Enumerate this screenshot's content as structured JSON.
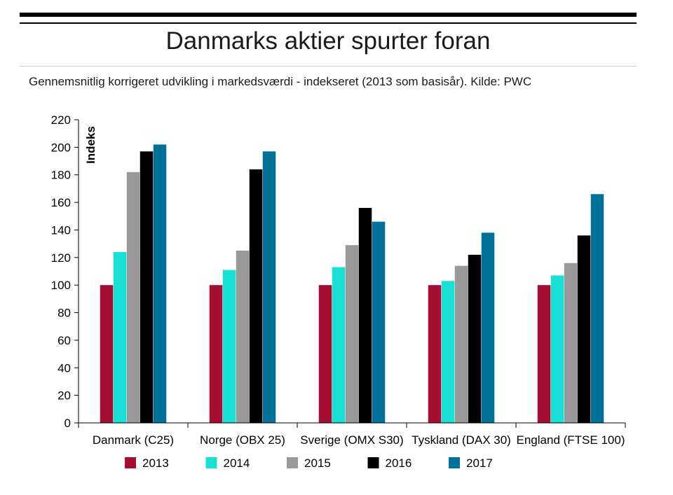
{
  "header": {
    "title": "Danmarks aktier spurter foran",
    "subtitle": "Gennemsnitlig korrigeret udvikling i markedsværdi - indekseret (2013 som basisår). Kilde: PWC"
  },
  "chart_data": {
    "type": "bar",
    "title": "Danmarks aktier spurter foran",
    "subtitle": "Gennemsnitlig korrigeret udvikling i markedsværdi - indekseret (2013 som basisår). Kilde: PWC",
    "xlabel": "",
    "ylabel": "Indeks",
    "ylim": [
      0,
      220
    ],
    "yticks": [
      0,
      20,
      40,
      60,
      80,
      100,
      120,
      140,
      160,
      180,
      200,
      220
    ],
    "grid": false,
    "legend": "bottom",
    "categories": [
      "Danmark (C25)",
      "Norge (OBX 25)",
      "Sverige (OMX S30)",
      "Tyskland (DAX 30)",
      "England (FTSE 100)"
    ],
    "series": [
      {
        "name": "2013",
        "color": "#a50d31",
        "values": [
          100,
          100,
          100,
          100,
          100
        ]
      },
      {
        "name": "2014",
        "color": "#18e0d4",
        "values": [
          124,
          111,
          113,
          103,
          107
        ]
      },
      {
        "name": "2015",
        "color": "#999999",
        "values": [
          182,
          125,
          129,
          114,
          116
        ]
      },
      {
        "name": "2016",
        "color": "#000000",
        "values": [
          197,
          184,
          156,
          122,
          136
        ]
      },
      {
        "name": "2017",
        "color": "#007198",
        "values": [
          202,
          197,
          146,
          138,
          166
        ]
      }
    ]
  }
}
